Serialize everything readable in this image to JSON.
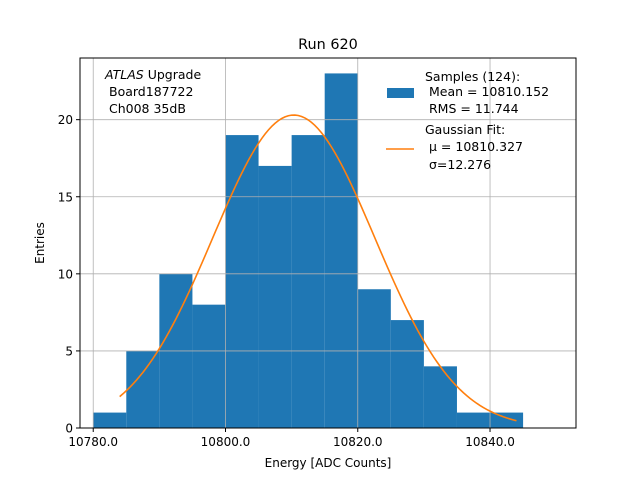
{
  "chart_data": {
    "type": "histogram",
    "title": "Run 620",
    "xlabel": "Energy [ADC Counts]",
    "ylabel": "Entries",
    "xlim": [
      10778.0,
      10853.0
    ],
    "ylim": [
      0,
      24
    ],
    "grid": true,
    "x_ticks": [
      10780,
      10800,
      10820,
      10840
    ],
    "x_tick_labels": [
      "10780.0",
      "10800.0",
      "10820.0",
      "10840.0"
    ],
    "y_ticks": [
      0,
      5,
      10,
      15,
      20
    ],
    "y_tick_labels": [
      "0",
      "5",
      "10",
      "15",
      "20"
    ],
    "bins": [
      {
        "x0": 10780,
        "x1": 10785,
        "value": 1
      },
      {
        "x0": 10785,
        "x1": 10790,
        "value": 5
      },
      {
        "x0": 10790,
        "x1": 10795,
        "value": 10
      },
      {
        "x0": 10795,
        "x1": 10800,
        "value": 8
      },
      {
        "x0": 10800,
        "x1": 10805,
        "value": 19
      },
      {
        "x0": 10805,
        "x1": 10810,
        "value": 17
      },
      {
        "x0": 10810,
        "x1": 10815,
        "value": 19
      },
      {
        "x0": 10815,
        "x1": 10820,
        "value": 23
      },
      {
        "x0": 10820,
        "x1": 10825,
        "value": 9
      },
      {
        "x0": 10825,
        "x1": 10830,
        "value": 7
      },
      {
        "x0": 10830,
        "x1": 10835,
        "value": 4
      },
      {
        "x0": 10835,
        "x1": 10840,
        "value": 1
      },
      {
        "x0": 10840,
        "x1": 10845,
        "value": 1
      }
    ],
    "fit": {
      "mu": 10810.327,
      "sigma": 12.276,
      "amplitude": 20.3,
      "x_range": [
        10784.0,
        10844.0
      ]
    },
    "annotation": {
      "line1_italic": "ATLAS",
      "line1_rest": " Upgrade",
      "line2": "Board187722",
      "line3": "Ch008 35dB"
    },
    "legend": {
      "placement": "top-right",
      "samples_line1": "Samples (124):",
      "samples_line2": "Mean = 10810.152",
      "samples_line3": "RMS = 11.744",
      "fit_line1": "Gaussian Fit:",
      "fit_line2": "μ = 10810.327",
      "fit_line3": "σ=12.276"
    },
    "colors": {
      "bars": "#1f77b4",
      "fit": "#ff7f0e",
      "grid": "#b0b0b0"
    }
  }
}
